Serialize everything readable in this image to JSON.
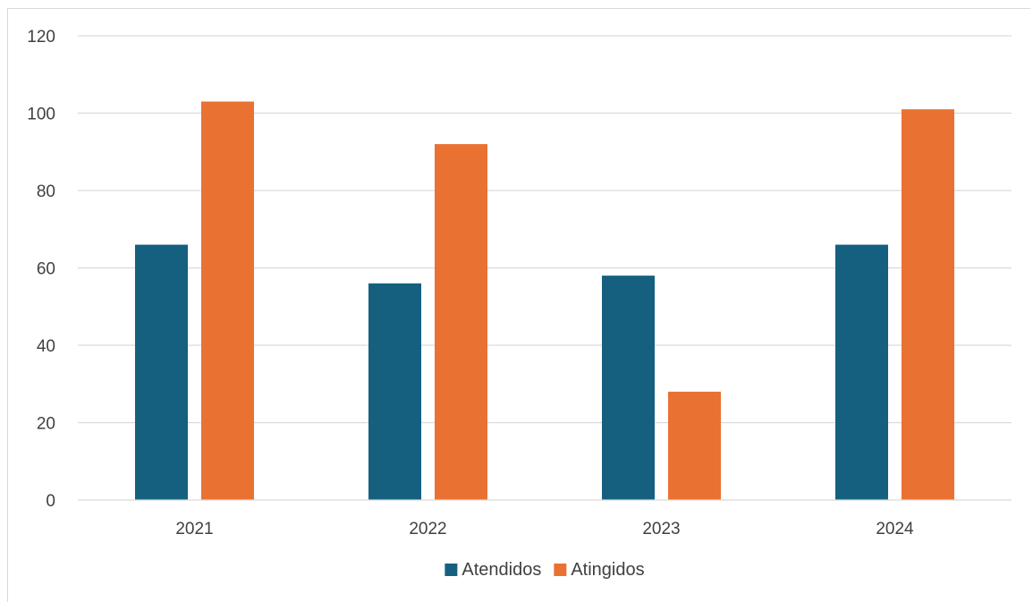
{
  "chart_data": {
    "type": "bar",
    "title": "",
    "xlabel": "",
    "ylabel": "",
    "categories": [
      "2021",
      "2022",
      "2023",
      "2024"
    ],
    "series": [
      {
        "name": "Atendidos",
        "values": [
          66,
          56,
          58,
          66
        ],
        "color": "#15607f"
      },
      {
        "name": "Atingidos",
        "values": [
          103,
          92,
          28,
          101
        ],
        "color": "#e97132"
      }
    ],
    "ylim": [
      0,
      120
    ],
    "yticks": [
      "0",
      "20",
      "40",
      "60",
      "80",
      "100",
      "120"
    ],
    "grid": true,
    "gridline_color": "#d9d9d9",
    "legend_position": "bottom"
  }
}
